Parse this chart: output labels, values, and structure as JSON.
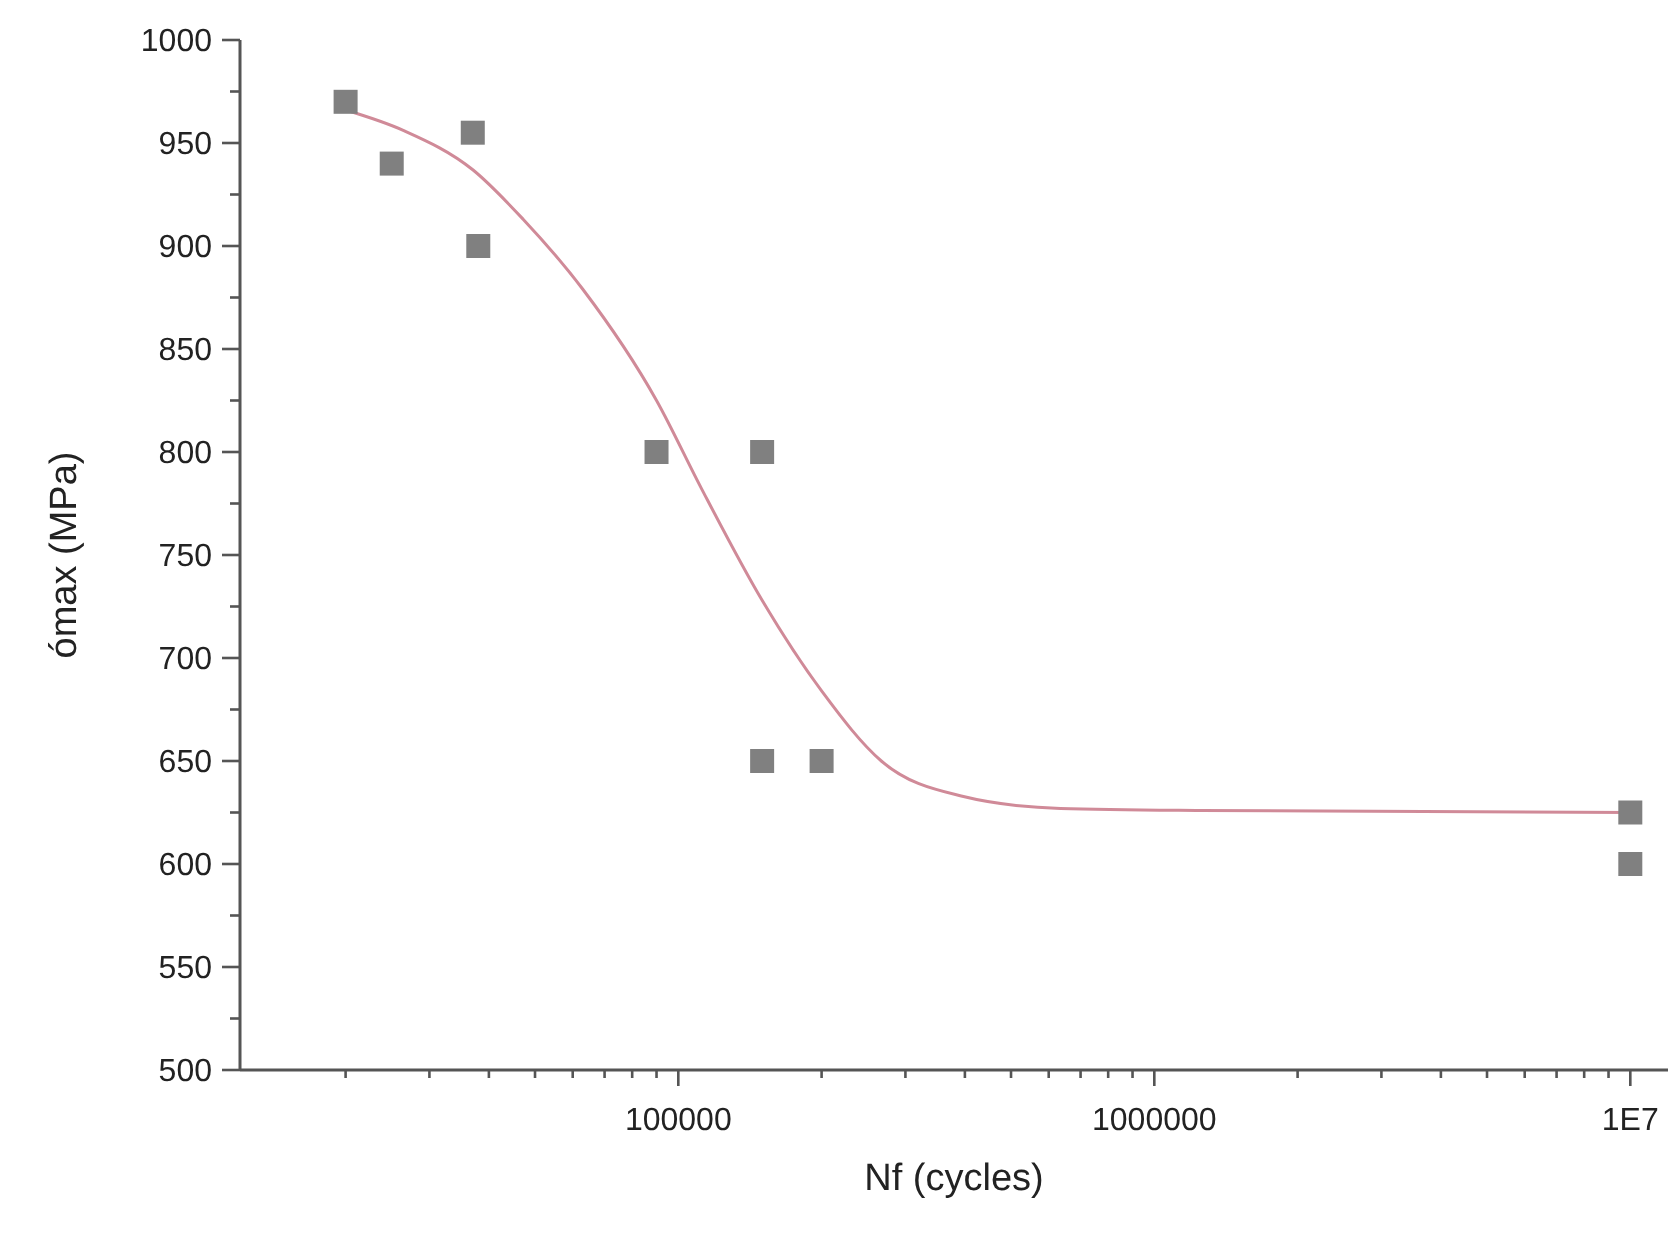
{
  "chart_data": {
    "type": "scatter",
    "xlabel": "Nf (cycles)",
    "ylabel": "ómax (MPa)",
    "log": "x",
    "grid": false,
    "xlim": [
      12000,
      12000000
    ],
    "ylim": [
      500,
      1000
    ],
    "xticks": [
      {
        "value": 20000,
        "label": null
      },
      {
        "value": 30000,
        "label": null
      },
      {
        "value": 40000,
        "label": null
      },
      {
        "value": 50000,
        "label": null
      },
      {
        "value": 60000,
        "label": null
      },
      {
        "value": 70000,
        "label": null
      },
      {
        "value": 80000,
        "label": null
      },
      {
        "value": 90000,
        "label": null
      },
      100000,
      {
        "value": 200000,
        "label": null
      },
      {
        "value": 300000,
        "label": null
      },
      {
        "value": 400000,
        "label": null
      },
      {
        "value": 500000,
        "label": null
      },
      {
        "value": 600000,
        "label": null
      },
      {
        "value": 700000,
        "label": null
      },
      {
        "value": 800000,
        "label": null
      },
      {
        "value": 900000,
        "label": null
      },
      1000000,
      {
        "value": 2000000,
        "label": null
      },
      {
        "value": 3000000,
        "label": null
      },
      {
        "value": 4000000,
        "label": null
      },
      {
        "value": 5000000,
        "label": null
      },
      {
        "value": 6000000,
        "label": null
      },
      {
        "value": 7000000,
        "label": null
      },
      {
        "value": 8000000,
        "label": null
      },
      {
        "value": 9000000,
        "label": null
      },
      {
        "value": 10000000,
        "label": "1E7"
      }
    ],
    "yticks": [
      500,
      {
        "value": 525,
        "label": null
      },
      550,
      {
        "value": 575,
        "label": null
      },
      600,
      {
        "value": 625,
        "label": null
      },
      650,
      {
        "value": 675,
        "label": null
      },
      700,
      {
        "value": 725,
        "label": null
      },
      750,
      {
        "value": 775,
        "label": null
      },
      800,
      {
        "value": 825,
        "label": null
      },
      850,
      {
        "value": 875,
        "label": null
      },
      900,
      {
        "value": 925,
        "label": null
      },
      950,
      {
        "value": 975,
        "label": null
      },
      1000
    ],
    "series": [
      {
        "marker": "square",
        "color": "#808080",
        "x": [
          20000,
          25000,
          37000,
          38000,
          90000,
          150000,
          150000,
          200000,
          10000000,
          10000000
        ],
        "values": [
          970,
          940,
          955,
          900,
          800,
          800,
          650,
          650,
          625,
          600
        ]
      },
      {
        "type": "line",
        "line_style": "solid",
        "color": "#d08a98",
        "x": [
          20000,
          26500,
          37000,
          47200,
          63000,
          90000,
          112000,
          150000,
          200000,
          267000,
          393000,
          635000,
          1250000,
          10000000
        ],
        "values": [
          966,
          956,
          937,
          913,
          879,
          825,
          782,
          728,
          684,
          650,
          633,
          627,
          626,
          625
        ]
      }
    ]
  }
}
